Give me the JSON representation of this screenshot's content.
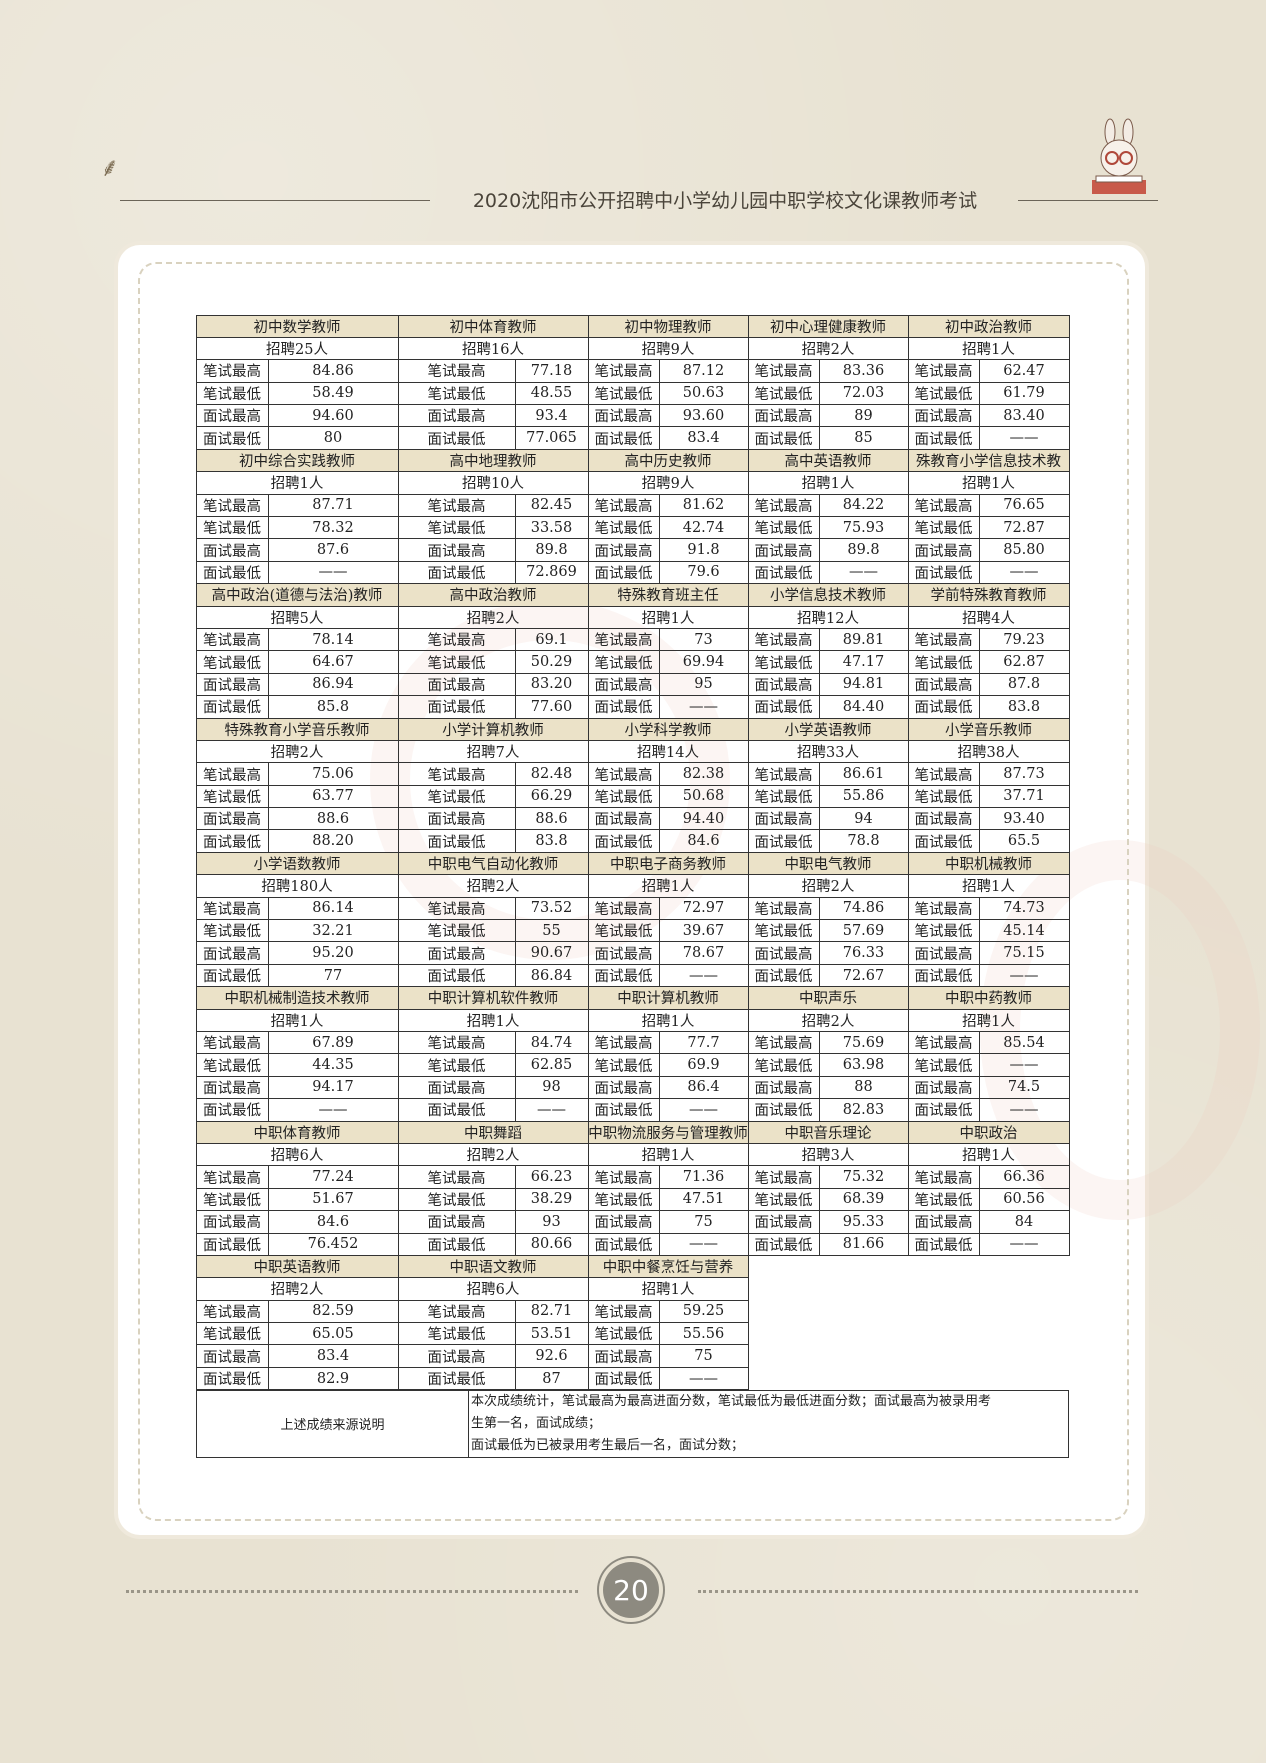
{
  "header": {
    "title": "2020沈阳市公开招聘中小学幼儿园中职学校文化课教师考试"
  },
  "labels": [
    "笔试最高",
    "笔试最低",
    "面试最高",
    "面试最低"
  ],
  "groups": [
    {
      "title": "初中数学教师",
      "hire": "招聘25人",
      "values": [
        "84.86",
        "58.49",
        "94.60",
        "80"
      ]
    },
    {
      "title": "初中体育教师",
      "hire": "招聘16人",
      "values": [
        "77.18",
        "48.55",
        "93.4",
        "77.065"
      ]
    },
    {
      "title": "初中物理教师",
      "hire": "招聘9人",
      "values": [
        "87.12",
        "50.63",
        "93.60",
        "83.4"
      ]
    },
    {
      "title": "初中心理健康教师",
      "hire": "招聘2人",
      "values": [
        "83.36",
        "72.03",
        "89",
        "85"
      ]
    },
    {
      "title": "初中政治教师",
      "hire": "招聘1人",
      "values": [
        "62.47",
        "61.79",
        "83.40",
        "——"
      ]
    },
    {
      "title": "初中综合实践教师",
      "hire": "招聘1人",
      "values": [
        "87.71",
        "78.32",
        "87.6",
        "——"
      ]
    },
    {
      "title": "高中地理教师",
      "hire": "招聘10人",
      "values": [
        "82.45",
        "33.58",
        "89.8",
        "72.869"
      ]
    },
    {
      "title": "高中历史教师",
      "hire": "招聘9人",
      "values": [
        "81.62",
        "42.74",
        "91.8",
        "79.6"
      ]
    },
    {
      "title": "高中英语教师",
      "hire": "招聘1人",
      "values": [
        "84.22",
        "75.93",
        "89.8",
        "——"
      ]
    },
    {
      "title": "殊教育小学信息技术教",
      "hire": "招聘1人",
      "values": [
        "76.65",
        "72.87",
        "85.80",
        "——"
      ]
    },
    {
      "title": "高中政治(道德与法治)教师",
      "hire": "招聘5人",
      "values": [
        "78.14",
        "64.67",
        "86.94",
        "85.8"
      ]
    },
    {
      "title": "高中政治教师",
      "hire": "招聘2人",
      "values": [
        "69.1",
        "50.29",
        "83.20",
        "77.60"
      ]
    },
    {
      "title": "特殊教育班主任",
      "hire": "招聘1人",
      "values": [
        "73",
        "69.94",
        "95",
        "——"
      ]
    },
    {
      "title": "小学信息技术教师",
      "hire": "招聘12人",
      "values": [
        "89.81",
        "47.17",
        "94.81",
        "84.40"
      ]
    },
    {
      "title": "学前特殊教育教师",
      "hire": "招聘4人",
      "values": [
        "79.23",
        "62.87",
        "87.8",
        "83.8"
      ]
    },
    {
      "title": "特殊教育小学音乐教师",
      "hire": "招聘2人",
      "values": [
        "75.06",
        "63.77",
        "88.6",
        "88.20"
      ]
    },
    {
      "title": "小学计算机教师",
      "hire": "招聘7人",
      "values": [
        "82.48",
        "66.29",
        "88.6",
        "83.8"
      ]
    },
    {
      "title": "小学科学教师",
      "hire": "招聘14人",
      "values": [
        "82.38",
        "50.68",
        "94.40",
        "84.6"
      ]
    },
    {
      "title": "小学英语教师",
      "hire": "招聘33人",
      "values": [
        "86.61",
        "55.86",
        "94",
        "78.8"
      ]
    },
    {
      "title": "小学音乐教师",
      "hire": "招聘38人",
      "values": [
        "87.73",
        "37.71",
        "93.40",
        "65.5"
      ]
    },
    {
      "title": "小学语数教师",
      "hire": "招聘180人",
      "values": [
        "86.14",
        "32.21",
        "95.20",
        "77"
      ]
    },
    {
      "title": "中职电气自动化教师",
      "hire": "招聘2人",
      "values": [
        "73.52",
        "55",
        "90.67",
        "86.84"
      ]
    },
    {
      "title": "中职电子商务教师",
      "hire": "招聘1人",
      "values": [
        "72.97",
        "39.67",
        "78.67",
        "——"
      ]
    },
    {
      "title": "中职电气教师",
      "hire": "招聘2人",
      "values": [
        "74.86",
        "57.69",
        "76.33",
        "72.67"
      ]
    },
    {
      "title": "中职机械教师",
      "hire": "招聘1人",
      "values": [
        "74.73",
        "45.14",
        "75.15",
        "——"
      ]
    },
    {
      "title": "中职机械制造技术教师",
      "hire": "招聘1人",
      "values": [
        "67.89",
        "44.35",
        "94.17",
        "——"
      ]
    },
    {
      "title": "中职计算机软件教师",
      "hire": "招聘1人",
      "values": [
        "84.74",
        "62.85",
        "98",
        "——"
      ]
    },
    {
      "title": "中职计算机教师",
      "hire": "招聘1人",
      "values": [
        "77.7",
        "69.9",
        "86.4",
        "——"
      ]
    },
    {
      "title": "中职声乐",
      "hire": "招聘2人",
      "values": [
        "75.69",
        "63.98",
        "88",
        "82.83"
      ]
    },
    {
      "title": "中职中药教师",
      "hire": "招聘1人",
      "values": [
        "85.54",
        "——",
        "74.5",
        "——"
      ]
    },
    {
      "title": "中职体育教师",
      "hire": "招聘6人",
      "values": [
        "77.24",
        "51.67",
        "84.6",
        "76.452"
      ]
    },
    {
      "title": "中职舞蹈",
      "hire": "招聘2人",
      "values": [
        "66.23",
        "38.29",
        "93",
        "80.66"
      ]
    },
    {
      "title": "中职物流服务与管理教师",
      "hire": "招聘1人",
      "values": [
        "71.36",
        "47.51",
        "75",
        "——"
      ]
    },
    {
      "title": "中职音乐理论",
      "hire": "招聘3人",
      "values": [
        "75.32",
        "68.39",
        "95.33",
        "81.66"
      ]
    },
    {
      "title": "中职政治",
      "hire": "招聘1人",
      "values": [
        "66.36",
        "60.56",
        "84",
        "——"
      ]
    },
    {
      "title": "中职英语教师",
      "hire": "招聘2人",
      "values": [
        "82.59",
        "65.05",
        "83.4",
        "82.9"
      ]
    },
    {
      "title": "中职语文教师",
      "hire": "招聘6人",
      "values": [
        "82.71",
        "53.51",
        "92.6",
        "87"
      ]
    },
    {
      "title": "中职中餐烹饪与营养",
      "hire": "招聘1人",
      "values": [
        "59.25",
        "55.56",
        "75",
        "——"
      ]
    }
  ],
  "note": {
    "label": "上述成绩来源说明",
    "lines": [
      "本次成绩统计，笔试最高为最高进面分数，笔试最低为最低进面分数；面试最高为被录用考",
      "生第一名，面试成绩；",
      "面试最低为已被录用考生最后一名，面试分数；"
    ]
  },
  "footer": {
    "page_number": "20"
  },
  "colors": {
    "title_cell_bg": "#ebe2c8",
    "page_bg": "#e8e2d2"
  }
}
